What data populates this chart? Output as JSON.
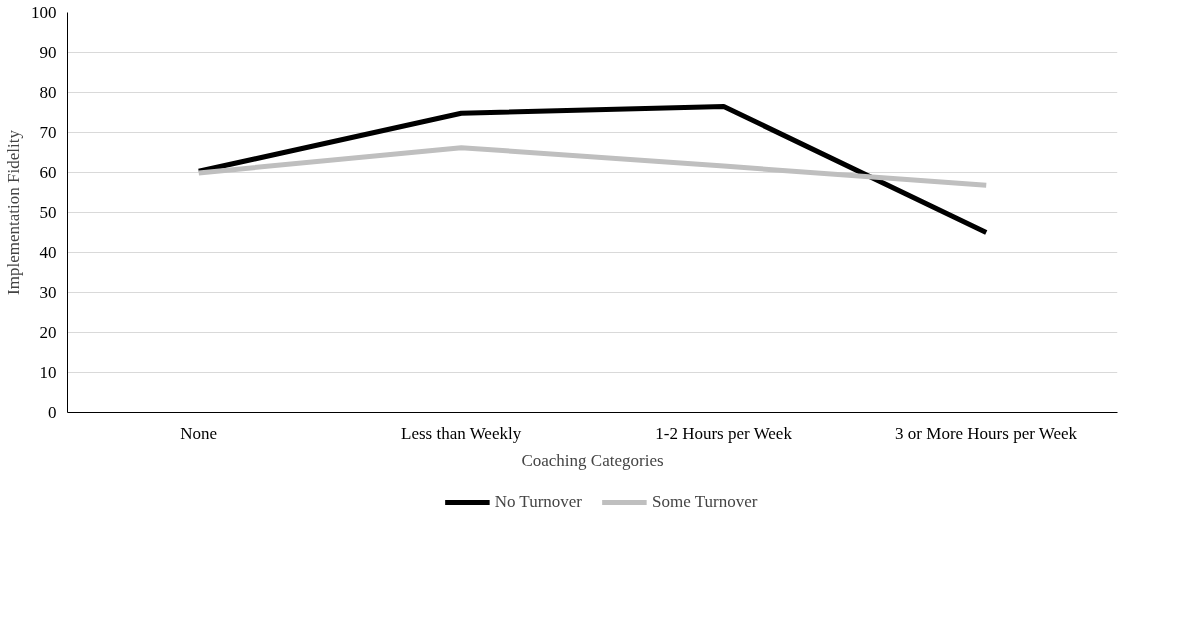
{
  "chart_data": {
    "type": "line",
    "xlabel": "Coaching Categories",
    "ylabel": "Implementation Fidelity",
    "categories": [
      "None",
      "Less than Weekly",
      "1-2 Hours per Week",
      "3 or More Hours per Week"
    ],
    "series": [
      {
        "name": "No Turnover",
        "color": "#000000",
        "values": [
          60.3,
          74.8,
          76.5,
          45
        ]
      },
      {
        "name": "Some Turnover",
        "color": "#bfbfbf",
        "values": [
          59.9,
          66.2,
          61.6,
          56.8
        ]
      }
    ],
    "ylim": [
      0,
      100
    ],
    "yticks": [
      0,
      10,
      20,
      30,
      40,
      50,
      60,
      70,
      80,
      90,
      100
    ],
    "grid": "y",
    "legend": "bottom",
    "marker": "none",
    "line_style": "solid"
  }
}
